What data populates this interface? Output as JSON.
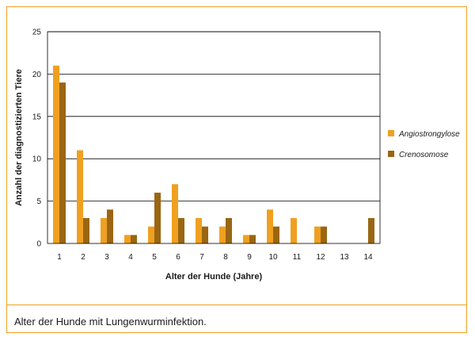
{
  "caption": "Alter der Hunde mit Lungenwurminfektion.",
  "colors": {
    "frame": "#f0a020",
    "series1": "#f0a020",
    "series2": "#9a6612",
    "grid": "#000000"
  },
  "chart_data": {
    "type": "bar",
    "title": "",
    "xlabel": "Alter der Hunde (Jahre)",
    "ylabel": "Anzahl der diagnostizierten Tiere",
    "categories": [
      "1",
      "2",
      "3",
      "4",
      "5",
      "6",
      "7",
      "8",
      "9",
      "10",
      "11",
      "12",
      "13",
      "14"
    ],
    "ylim": [
      0,
      25
    ],
    "yticks": [
      0,
      5,
      10,
      15,
      20,
      25
    ],
    "grid": true,
    "legend_position": "right",
    "series": [
      {
        "name": "Angiostrongylose",
        "color": "#f0a020",
        "values": [
          21,
          11,
          3,
          1,
          2,
          7,
          3,
          2,
          1,
          4,
          3,
          2,
          0,
          0
        ]
      },
      {
        "name": "Crenosomose",
        "color": "#9a6612",
        "values": [
          19,
          3,
          4,
          1,
          6,
          3,
          2,
          3,
          1,
          2,
          0,
          2,
          0,
          3
        ]
      }
    ]
  }
}
